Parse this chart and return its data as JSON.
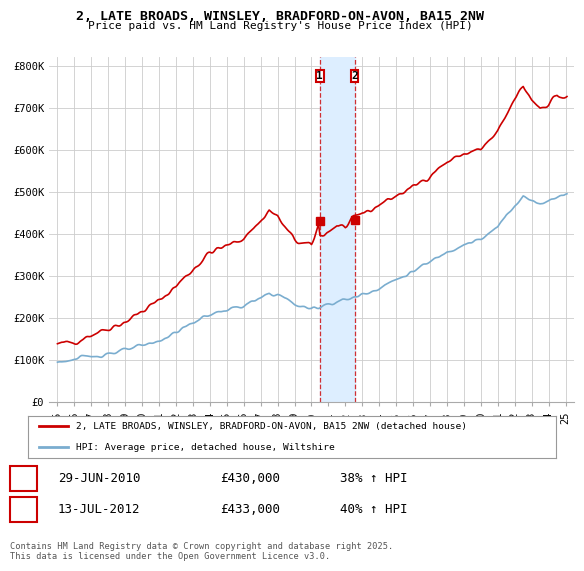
{
  "title_line1": "2, LATE BROADS, WINSLEY, BRADFORD-ON-AVON, BA15 2NW",
  "title_line2": "Price paid vs. HM Land Registry's House Price Index (HPI)",
  "ylabel_ticks": [
    "£0",
    "£100K",
    "£200K",
    "£300K",
    "£400K",
    "£500K",
    "£600K",
    "£700K",
    "£800K"
  ],
  "ytick_values": [
    0,
    100000,
    200000,
    300000,
    400000,
    500000,
    600000,
    700000,
    800000
  ],
  "ylim": [
    0,
    820000
  ],
  "xlim_start": 1994.5,
  "xlim_end": 2025.5,
  "xtick_years": [
    1995,
    1996,
    1997,
    1998,
    1999,
    2000,
    2001,
    2002,
    2003,
    2004,
    2005,
    2006,
    2007,
    2008,
    2009,
    2010,
    2011,
    2012,
    2013,
    2014,
    2015,
    2016,
    2017,
    2018,
    2019,
    2020,
    2021,
    2022,
    2023,
    2024,
    2025
  ],
  "red_color": "#cc0000",
  "blue_color": "#7aadcf",
  "shade_color": "#ddeeff",
  "background_color": "#ffffff",
  "grid_color": "#cccccc",
  "legend_label_red": "2, LATE BROADS, WINSLEY, BRADFORD-ON-AVON, BA15 2NW (detached house)",
  "legend_label_blue": "HPI: Average price, detached house, Wiltshire",
  "transaction_1_date": "29-JUN-2010",
  "transaction_1_price": "£430,000",
  "transaction_1_hpi": "38% ↑ HPI",
  "transaction_1_x": 2010.49,
  "transaction_1_y": 430000,
  "transaction_2_date": "13-JUL-2012",
  "transaction_2_price": "£433,000",
  "transaction_2_hpi": "40% ↑ HPI",
  "transaction_2_x": 2012.54,
  "transaction_2_y": 433000,
  "footer_text": "Contains HM Land Registry data © Crown copyright and database right 2025.\nThis data is licensed under the Open Government Licence v3.0."
}
